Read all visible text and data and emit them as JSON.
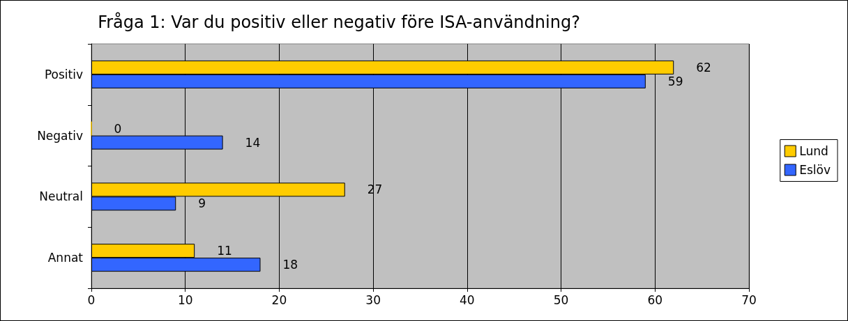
{
  "chart_data": {
    "type": "bar",
    "orientation": "horizontal",
    "title": "Fråga 1: Var du positiv eller negativ före ISA-användning?",
    "categories": [
      "Positiv",
      "Negativ",
      "Neutral",
      "Annat"
    ],
    "series": [
      {
        "name": "Lund",
        "color": "#ffcc00",
        "values": [
          62,
          0,
          27,
          11
        ]
      },
      {
        "name": "Eslöv",
        "color": "#3366ff",
        "values": [
          59,
          14,
          9,
          18
        ]
      }
    ],
    "xlim": [
      0,
      70
    ],
    "xticks": [
      0,
      10,
      20,
      30,
      40,
      50,
      60,
      70
    ],
    "grid": "x",
    "legend": "right",
    "data_labels": true
  }
}
